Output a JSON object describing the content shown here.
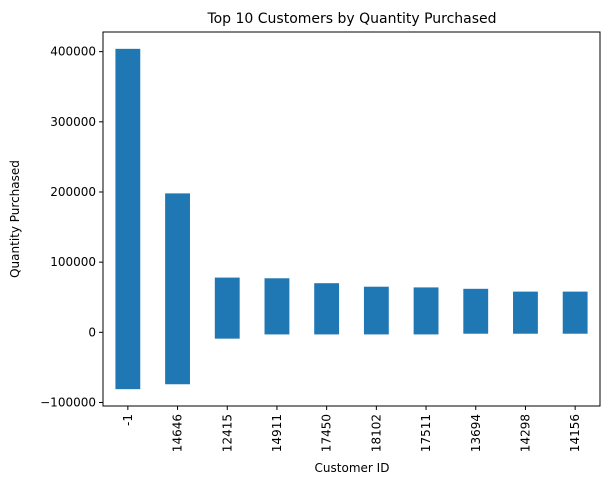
{
  "chart_data": {
    "type": "bar",
    "title": "Top 10 Customers by Quantity Purchased",
    "xlabel": "Customer ID",
    "ylabel": "Quantity Purchased",
    "categories": [
      "-1",
      "14646",
      "12415",
      "14911",
      "17450",
      "18102",
      "17511",
      "13694",
      "14298",
      "14156"
    ],
    "ranges": [
      {
        "low": -81000,
        "high": 404000
      },
      {
        "low": -74000,
        "high": 198000
      },
      {
        "low": -9000,
        "high": 78000
      },
      {
        "low": -3000,
        "high": 77000
      },
      {
        "low": -3000,
        "high": 70000
      },
      {
        "low": -3000,
        "high": 65000
      },
      {
        "low": -3000,
        "high": 64000
      },
      {
        "low": -2000,
        "high": 62000
      },
      {
        "low": -2000,
        "high": 58000
      },
      {
        "low": -2000,
        "high": 58000
      }
    ],
    "yticks": [
      -100000,
      0,
      100000,
      200000,
      300000,
      400000
    ],
    "ytick_labels": [
      "−100000",
      "0",
      "100000",
      "200000",
      "300000",
      "400000"
    ],
    "ylim": [
      -105000,
      428000
    ],
    "grid": false,
    "legend": "none",
    "bar_color": "#1f77b4"
  }
}
